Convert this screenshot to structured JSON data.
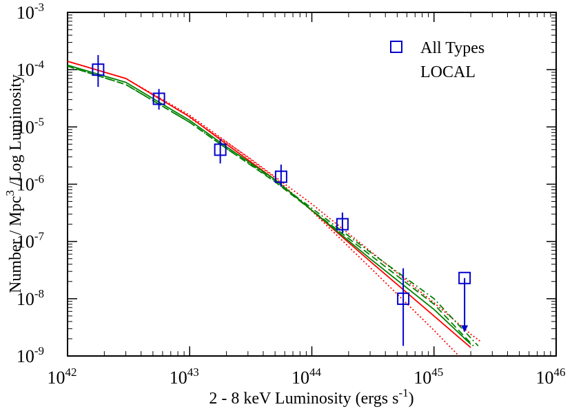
{
  "chart_data": {
    "type": "scatter",
    "xlabel": "2 - 8 keV Luminosity  (ergs s",
    "xlabel_sup": "-1",
    "xlabel_tail": ")",
    "ylabel_pre": "Number / Mpc",
    "ylabel_sup": "3",
    "ylabel_post": " /Log Luminosity",
    "x_scale": "log",
    "y_scale": "log",
    "xlim": [
      1e+42,
      1e+46
    ],
    "ylim": [
      1e-09,
      0.001
    ],
    "x_ticks": [
      {
        "base": "10",
        "exp": "42",
        "value": 1e+42
      },
      {
        "base": "10",
        "exp": "43",
        "value": 1e+43
      },
      {
        "base": "10",
        "exp": "44",
        "value": 1e+44
      },
      {
        "base": "10",
        "exp": "45",
        "value": 1e+45
      },
      {
        "base": "10",
        "exp": "46",
        "value": 1e+46
      }
    ],
    "y_ticks": [
      {
        "base": "10",
        "exp": "-9",
        "value": 1e-09
      },
      {
        "base": "10",
        "exp": "-8",
        "value": 1e-08
      },
      {
        "base": "10",
        "exp": "-7",
        "value": 1e-07
      },
      {
        "base": "10",
        "exp": "-6",
        "value": 1e-06
      },
      {
        "base": "10",
        "exp": "-5",
        "value": 1e-05
      },
      {
        "base": "10",
        "exp": "-4",
        "value": 0.0001
      },
      {
        "base": "10",
        "exp": "-3",
        "value": 0.001
      }
    ],
    "legend_position": "top-right",
    "legend": [
      {
        "label": "All Types",
        "marker": "open-square",
        "color": "#0000cc"
      },
      {
        "label": "LOCAL",
        "marker": "none",
        "color": "#000000"
      }
    ],
    "points": [
      {
        "x": 1.78e+42,
        "y": 0.0001,
        "y_low": 5e-05,
        "y_high": 0.00018
      },
      {
        "x": 5.6e+42,
        "y": 3.1e-05,
        "y_low": 2e-05,
        "y_high": 4.6e-05
      },
      {
        "x": 1.78e+43,
        "y": 4e-06,
        "y_low": 2.3e-06,
        "y_high": 6.2e-06
      },
      {
        "x": 5.6e+43,
        "y": 1.35e-06,
        "y_low": 9e-07,
        "y_high": 2.2e-06
      },
      {
        "x": 1.78e+44,
        "y": 2e-07,
        "y_low": 1.4e-07,
        "y_high": 3.2e-07
      },
      {
        "x": 5.6e+44,
        "y": 1e-08,
        "y_low": 1.5e-09,
        "y_high": 3.4e-08
      },
      {
        "x": 1.78e+45,
        "y": 2.3e-08,
        "upper_limit": true,
        "arrow_to": 2.6e-09
      }
    ],
    "curves": [
      {
        "color": "#ff0000",
        "style": "solid",
        "points": [
          [
            1e+42,
            0.00014
          ],
          [
            3e+42,
            7e-05
          ],
          [
            1e+43,
            1.5e-05
          ],
          [
            2e+43,
            5e-06
          ],
          [
            5e+43,
            1.2e-06
          ],
          [
            1e+44,
            3.5e-07
          ],
          [
            3e+44,
            4.5e-08
          ],
          [
            1e+45,
            5e-09
          ],
          [
            2e+45,
            1.4e-09
          ]
        ]
      },
      {
        "color": "#ff0000",
        "style": "dotted",
        "points": [
          [
            1e+42,
            0.00014
          ],
          [
            3e+42,
            7e-05
          ],
          [
            1e+43,
            1.6e-05
          ],
          [
            2e+43,
            5.5e-06
          ],
          [
            5e+43,
            1.3e-06
          ],
          [
            1e+44,
            3.4e-07
          ],
          [
            3e+44,
            3.5e-08
          ],
          [
            1e+45,
            2.8e-09
          ],
          [
            1.6e+45,
            1e-09
          ]
        ]
      },
      {
        "color": "#ff0000",
        "style": "dotted",
        "points": [
          [
            1e+43,
            1.45e-05
          ],
          [
            3e+43,
            3e-06
          ],
          [
            1e+44,
            4.5e-07
          ],
          [
            3e+44,
            6.8e-08
          ],
          [
            1e+45,
            8.5e-09
          ],
          [
            2e+45,
            2.4e-09
          ],
          [
            2.4e+45,
            1.8e-09
          ]
        ]
      },
      {
        "color": "#008000",
        "style": "solid",
        "points": [
          [
            1e+42,
            0.00012
          ],
          [
            3e+42,
            6e-05
          ],
          [
            1e+43,
            1.3e-05
          ],
          [
            2e+43,
            4.5e-06
          ],
          [
            5e+43,
            1.2e-06
          ],
          [
            1e+44,
            3.5e-07
          ],
          [
            3e+44,
            5e-08
          ],
          [
            1e+45,
            6.5e-09
          ],
          [
            2e+45,
            1.6e-09
          ]
        ]
      },
      {
        "color": "#008000",
        "style": "dashed",
        "points": [
          [
            1e+42,
            0.000115
          ],
          [
            3e+42,
            5.5e-05
          ],
          [
            1e+43,
            1.2e-05
          ],
          [
            2e+43,
            4.2e-06
          ],
          [
            5e+43,
            1.1e-06
          ],
          [
            1e+44,
            3.5e-07
          ],
          [
            3e+44,
            5.8e-08
          ],
          [
            1e+45,
            8e-09
          ],
          [
            2.1e+45,
            1.5e-09
          ]
        ]
      },
      {
        "color": "#008000",
        "style": "dashdot",
        "points": [
          [
            1e+42,
            0.000115
          ],
          [
            3e+42,
            5.5e-05
          ],
          [
            1e+43,
            1.2e-05
          ],
          [
            2e+43,
            4.2e-06
          ],
          [
            5e+43,
            1.15e-06
          ],
          [
            1e+44,
            3.8e-07
          ],
          [
            3e+44,
            6.5e-08
          ],
          [
            1e+45,
            1e-08
          ],
          [
            2.3e+45,
            1.5e-09
          ]
        ]
      }
    ]
  }
}
